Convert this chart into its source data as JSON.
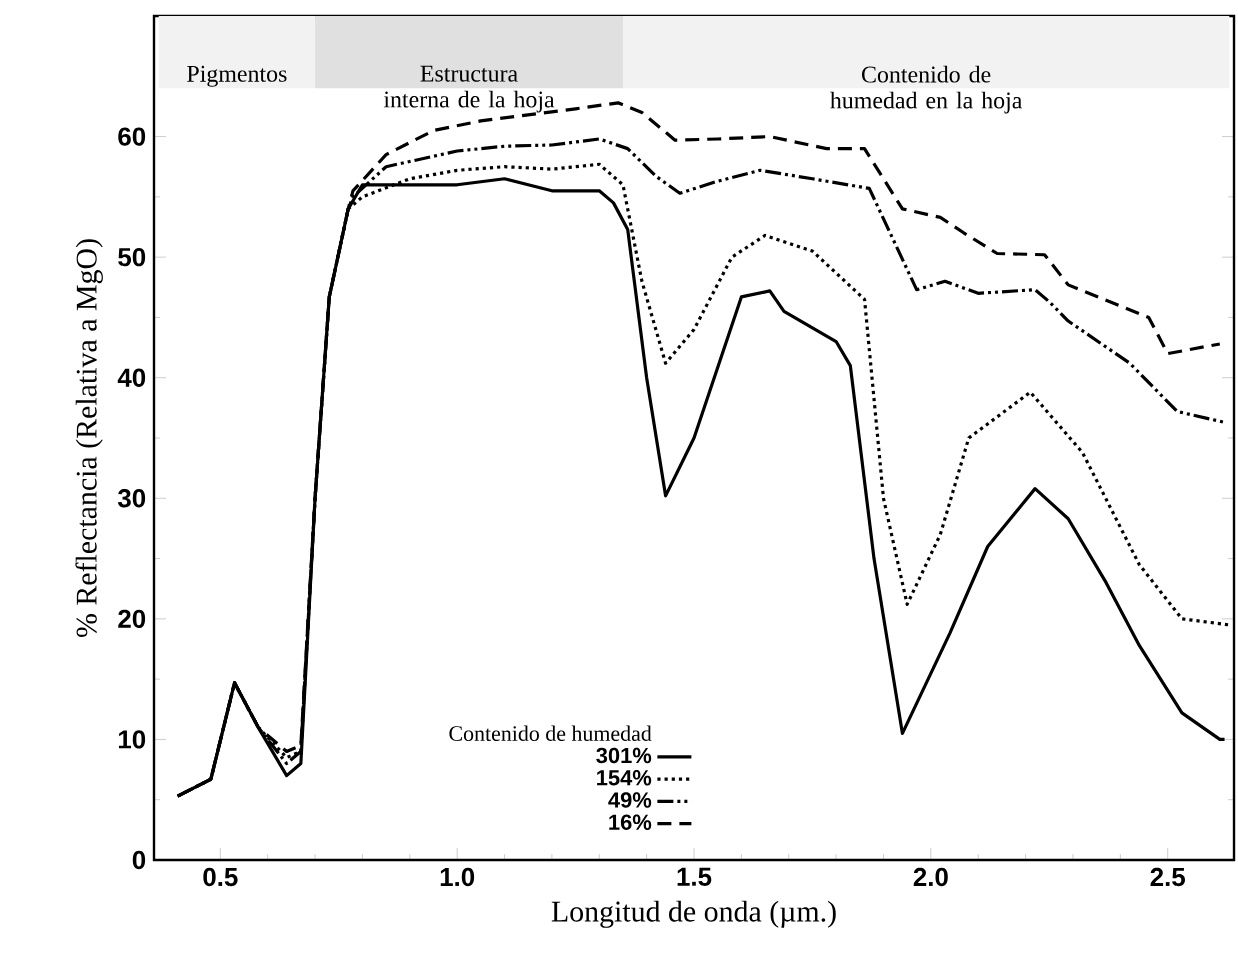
{
  "chart_data": {
    "type": "line",
    "xlabel": "Longitud de onda (µm.)",
    "ylabel": "% Reflectancia (Relativa a MgO)",
    "legend_title": "Contenido de humedad",
    "legend": "bottom",
    "xlim": [
      0.36,
      2.64
    ],
    "ylim": [
      0,
      70
    ],
    "xticks": [
      0.5,
      {
        "value": 1.0,
        "label": "1.0"
      },
      1.5,
      {
        "value": 2.0,
        "label": "2.0"
      },
      2.5
    ],
    "yticks": [
      0,
      10,
      20,
      30,
      40,
      50,
      60
    ],
    "grid": false,
    "bands": [
      {
        "axis": "x",
        "from": 0.37,
        "to": 0.7,
        "label": "Pigmentos",
        "color": "#f2f2f2"
      },
      {
        "axis": "x",
        "from": 0.7,
        "to": 1.35,
        "label": "Estructura interna de la hoja",
        "color": "#e0e0e0"
      },
      {
        "axis": "x",
        "from": 1.35,
        "to": 2.63,
        "label": "Contenido de humedad en la hoja",
        "color": "#f2f2f2"
      }
    ],
    "series": [
      {
        "name": "301%",
        "color": "#000000",
        "line_style": "solid",
        "x": [
          0.41,
          0.48,
          0.53,
          0.58,
          0.64,
          0.67,
          0.7,
          0.73,
          0.77,
          0.8,
          0.9,
          1.0,
          1.1,
          1.2,
          1.3,
          1.33,
          1.36,
          1.4,
          1.44,
          1.5,
          1.6,
          1.66,
          1.69,
          1.8,
          1.83,
          1.88,
          1.94,
          2.04,
          2.12,
          2.22,
          2.29,
          2.37,
          2.44,
          2.53,
          2.61,
          2.62
        ],
        "values": [
          5.3,
          6.7,
          14.7,
          11,
          7,
          8,
          30,
          46.7,
          54,
          56,
          56,
          56,
          56.5,
          55.5,
          55.5,
          54.5,
          52.3,
          40,
          30.2,
          35,
          46.7,
          47.2,
          45.5,
          43,
          41,
          25,
          10.5,
          18.8,
          26,
          30.8,
          28.3,
          23,
          17.8,
          12.2,
          10,
          10
        ]
      },
      {
        "name": "154%",
        "color": "#000000",
        "line_style": "dotted",
        "x": [
          0.41,
          0.48,
          0.53,
          0.58,
          0.64,
          0.67,
          0.7,
          0.73,
          0.77,
          0.8,
          0.9,
          1.0,
          1.1,
          1.2,
          1.3,
          1.35,
          1.39,
          1.44,
          1.5,
          1.58,
          1.65,
          1.75,
          1.86,
          1.9,
          1.95,
          2.02,
          2.08,
          2.21,
          2.32,
          2.44,
          2.53,
          2.63
        ],
        "values": [
          5.3,
          6.7,
          14.7,
          11,
          8.5,
          9,
          30,
          46.7,
          54,
          55,
          56.5,
          57.2,
          57.5,
          57.3,
          57.7,
          56,
          48,
          41.2,
          44,
          50,
          51.8,
          50.5,
          46.5,
          30,
          21.2,
          27,
          35,
          38.8,
          33.8,
          24.5,
          20,
          19.5
        ]
      },
      {
        "name": "49%",
        "color": "#000000",
        "line_style": "dashdotdotted",
        "x": [
          0.41,
          0.48,
          0.53,
          0.58,
          0.64,
          0.67,
          0.7,
          0.73,
          0.77,
          0.78,
          0.85,
          1.0,
          1.1,
          1.2,
          1.3,
          1.36,
          1.42,
          1.47,
          1.55,
          1.64,
          1.75,
          1.87,
          1.97,
          2.03,
          2.1,
          2.22,
          2.25,
          2.29,
          2.42,
          2.52,
          2.62
        ],
        "values": [
          5.3,
          6.7,
          14.7,
          11,
          8,
          9,
          30,
          46.7,
          54,
          55,
          57.5,
          58.8,
          59.2,
          59.3,
          59.8,
          59,
          56.7,
          55.3,
          56.3,
          57.2,
          56.5,
          55.7,
          47.3,
          48,
          47,
          47.3,
          46.3,
          44.7,
          41.2,
          37.2,
          36.3
        ]
      },
      {
        "name": "16%",
        "color": "#000000",
        "line_style": "dashed",
        "x": [
          0.41,
          0.48,
          0.53,
          0.58,
          0.64,
          0.67,
          0.7,
          0.73,
          0.77,
          0.78,
          0.85,
          0.95,
          1.05,
          1.15,
          1.25,
          1.34,
          1.39,
          1.46,
          1.55,
          1.66,
          1.78,
          1.86,
          1.94,
          2.02,
          2.07,
          2.14,
          2.24,
          2.29,
          2.46,
          2.5,
          2.61
        ],
        "values": [
          5.3,
          6.7,
          14.7,
          11,
          9,
          9.5,
          30,
          46.7,
          54,
          55.5,
          58.5,
          60.5,
          61.3,
          61.8,
          62.3,
          62.8,
          62,
          59.7,
          59.8,
          60,
          59,
          59,
          54,
          53.3,
          52,
          50.3,
          50.2,
          47.7,
          45,
          42,
          42.8
        ]
      }
    ]
  }
}
